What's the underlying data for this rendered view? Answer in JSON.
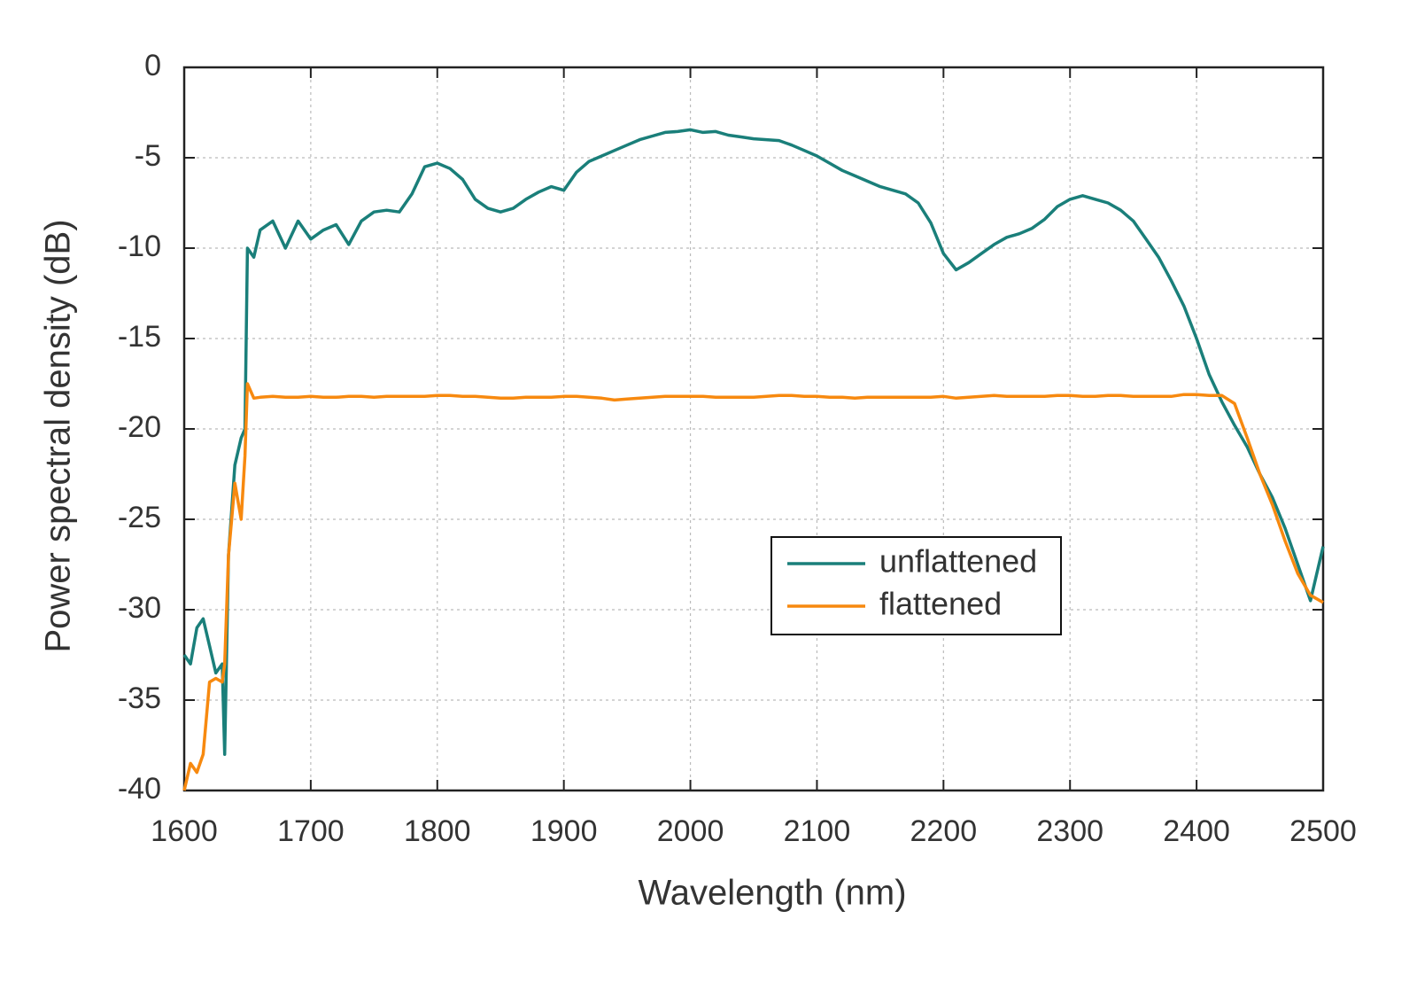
{
  "chart_data": {
    "type": "line",
    "x_label": "Wavelength (nm)",
    "y_label": "Power spectral density (dB)",
    "x": [
      1600,
      1605,
      1610,
      1615,
      1620,
      1625,
      1630,
      1632,
      1635,
      1640,
      1645,
      1648,
      1650,
      1655,
      1660,
      1670,
      1680,
      1690,
      1700,
      1710,
      1720,
      1730,
      1740,
      1750,
      1760,
      1770,
      1780,
      1790,
      1800,
      1810,
      1820,
      1830,
      1840,
      1850,
      1860,
      1870,
      1880,
      1890,
      1900,
      1910,
      1920,
      1930,
      1940,
      1950,
      1960,
      1970,
      1980,
      1990,
      2000,
      2010,
      2020,
      2030,
      2040,
      2050,
      2060,
      2070,
      2080,
      2090,
      2100,
      2110,
      2120,
      2130,
      2140,
      2150,
      2160,
      2170,
      2180,
      2190,
      2200,
      2210,
      2220,
      2230,
      2240,
      2250,
      2260,
      2270,
      2280,
      2290,
      2300,
      2310,
      2320,
      2330,
      2340,
      2350,
      2360,
      2370,
      2380,
      2390,
      2400,
      2410,
      2420,
      2430,
      2440,
      2450,
      2460,
      2470,
      2480,
      2490,
      2500
    ],
    "series": [
      {
        "name": "unflattened",
        "color": "#1a7f7a",
        "values": [
          -32.5,
          -33,
          -31,
          -30.5,
          -32,
          -33.5,
          -33,
          -38,
          -27,
          -22,
          -20.5,
          -20,
          -10,
          -10.5,
          -9,
          -8.5,
          -10,
          -8.5,
          -9.5,
          -9,
          -8.7,
          -9.8,
          -8.5,
          -8,
          -7.9,
          -8,
          -7,
          -5.5,
          -5.3,
          -5.6,
          -6.2,
          -7.3,
          -7.8,
          -8,
          -7.8,
          -7.3,
          -6.9,
          -6.6,
          -6.8,
          -5.8,
          -5.2,
          -4.9,
          -4.6,
          -4.3,
          -4,
          -3.8,
          -3.6,
          -3.55,
          -3.45,
          -3.6,
          -3.55,
          -3.75,
          -3.85,
          -3.95,
          -4,
          -4.05,
          -4.3,
          -4.6,
          -4.9,
          -5.3,
          -5.7,
          -6,
          -6.3,
          -6.6,
          -6.8,
          -7,
          -7.5,
          -8.6,
          -10.3,
          -11.2,
          -10.8,
          -10.3,
          -9.8,
          -9.4,
          -9.2,
          -8.9,
          -8.4,
          -7.7,
          -7.3,
          -7.1,
          -7.3,
          -7.5,
          -7.9,
          -8.5,
          -9.5,
          -10.5,
          -11.8,
          -13.2,
          -15,
          -17,
          -18.5,
          -19.8,
          -21,
          -22.5,
          -23.8,
          -25.5,
          -27.5,
          -29.5,
          -26.5
        ]
      },
      {
        "name": "flattened",
        "color": "#f7890f",
        "values": [
          -40,
          -38.5,
          -39,
          -38,
          -34,
          -33.8,
          -34,
          -33,
          -27,
          -23,
          -25,
          -21.5,
          -17.5,
          -18.3,
          -18.25,
          -18.2,
          -18.25,
          -18.25,
          -18.2,
          -18.25,
          -18.25,
          -18.2,
          -18.2,
          -18.25,
          -18.2,
          -18.2,
          -18.2,
          -18.2,
          -18.15,
          -18.15,
          -18.2,
          -18.2,
          -18.25,
          -18.3,
          -18.3,
          -18.25,
          -18.25,
          -18.25,
          -18.2,
          -18.2,
          -18.25,
          -18.3,
          -18.4,
          -18.35,
          -18.3,
          -18.25,
          -18.2,
          -18.2,
          -18.2,
          -18.2,
          -18.25,
          -18.25,
          -18.25,
          -18.25,
          -18.2,
          -18.15,
          -18.15,
          -18.2,
          -18.2,
          -18.25,
          -18.25,
          -18.3,
          -18.25,
          -18.25,
          -18.25,
          -18.25,
          -18.25,
          -18.25,
          -18.2,
          -18.3,
          -18.25,
          -18.2,
          -18.15,
          -18.2,
          -18.2,
          -18.2,
          -18.2,
          -18.15,
          -18.15,
          -18.2,
          -18.2,
          -18.15,
          -18.15,
          -18.2,
          -18.2,
          -18.2,
          -18.2,
          -18.1,
          -18.1,
          -18.15,
          -18.15,
          -18.6,
          -20.5,
          -22.5,
          -24.2,
          -26.2,
          -28,
          -29.2,
          -29.6
        ]
      }
    ],
    "xlim": [
      1600,
      2500
    ],
    "xticks": [
      1600,
      1700,
      1800,
      1900,
      2000,
      2100,
      2200,
      2300,
      2400,
      2500
    ],
    "ylim": [
      -40,
      0
    ],
    "yticks": [
      0,
      -5,
      -10,
      -15,
      -20,
      -25,
      -30,
      -35,
      -40
    ],
    "grid": true,
    "legend": "center-right"
  }
}
